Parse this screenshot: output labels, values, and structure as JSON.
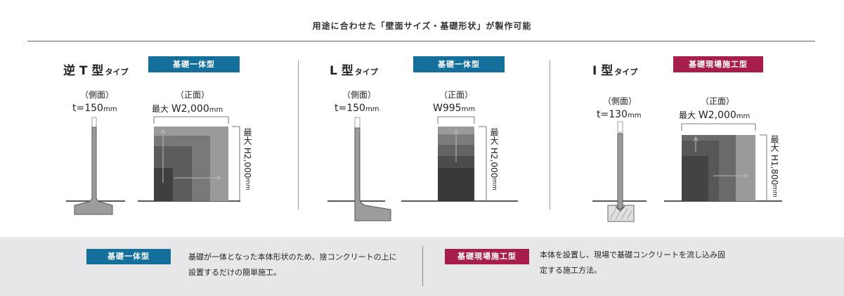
{
  "heading": "用途に合わせた「壁面サイズ・基礎形状」が製作可能",
  "types": [
    {
      "title_main": "逆 T 型",
      "title_sub": "タイプ",
      "badge": "基礎一体型",
      "side_label": "（側面）",
      "side_thickness": "t=150",
      "front_label": "（正面）",
      "front_width_prefix": "最大 ",
      "front_width": "W2,000",
      "height_prefix": "最大 ",
      "height": "H2,000",
      "unit": "mm"
    },
    {
      "title_main": "L 型",
      "title_sub": "タイプ",
      "badge": "基礎一体型",
      "side_label": "（側面）",
      "side_thickness": "t=150",
      "front_label": "（正面）",
      "front_width": "W995",
      "height_prefix": "最大 ",
      "height": "H2,000",
      "unit": "mm"
    },
    {
      "title_main": "I 型",
      "title_sub": "タイプ",
      "badge": "基礎現場施工型",
      "side_label": "（側面）",
      "side_thickness": "t=130",
      "front_label": "（正面）",
      "front_width_prefix": "最大 ",
      "front_width": "W2,000",
      "height_prefix": "最大 ",
      "height": "H1,800",
      "unit": "mm"
    }
  ],
  "footer": {
    "left_badge": "基礎一体型",
    "left_desc_line1": "基礎が一体となった本体形状のため、捨コンクリートの上に",
    "left_desc_line2": "設置するだけの簡単施工。",
    "right_badge": "基礎現場施工型",
    "right_desc_line1": "本体を設置し、現場で基礎コンクリートを流し込み固",
    "right_desc_line2": "定する施工方法。"
  },
  "colors": {
    "badge_blue": "#146f9b",
    "badge_red": "#a71e4d",
    "footer_bg": "#e7e7e9"
  }
}
